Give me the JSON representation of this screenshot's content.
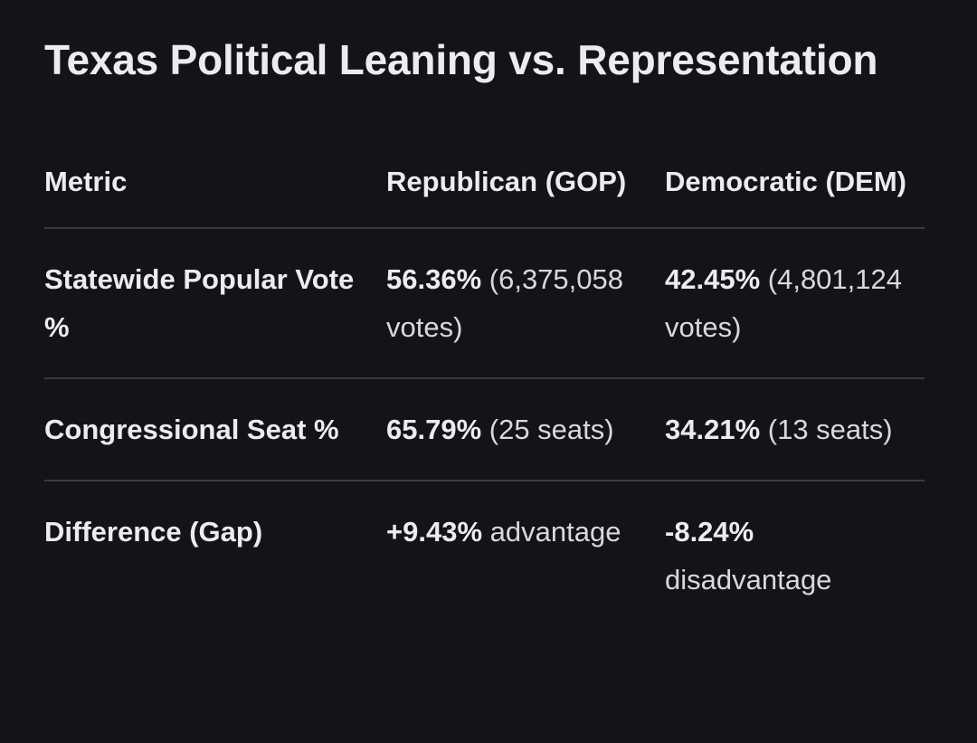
{
  "title": "Texas Political Leaning vs. Representation",
  "table": {
    "headers": [
      "Metric",
      "Republican (GOP)",
      "Democratic (DEM)"
    ],
    "rows": [
      {
        "metric": "Statewide Popular Vote %",
        "gop": {
          "value": "56.36%",
          "detail": "(6,375,058 votes)"
        },
        "dem": {
          "value": "42.45%",
          "detail": "(4,801,124 votes)"
        }
      },
      {
        "metric": "Congressional Seat %",
        "gop": {
          "value": "65.79%",
          "detail": "(25 seats)"
        },
        "dem": {
          "value": "34.21%",
          "detail": "(13 seats)"
        }
      },
      {
        "metric": "Difference (Gap)",
        "gop": {
          "value": "+9.43%",
          "detail": "advantage"
        },
        "dem": {
          "value": "-8.24%",
          "detail": "disadvantage"
        }
      }
    ]
  },
  "colors": {
    "background": "#131418",
    "text": "#e3e3e6",
    "divider": "#3a3b41"
  }
}
